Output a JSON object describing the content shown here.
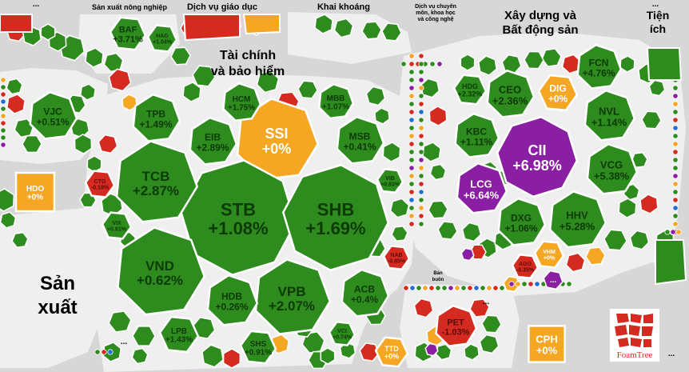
{
  "chart_data": {
    "type": "treemap",
    "title": "",
    "groups": [
      {
        "name": "Tài chính và bảo hiểm",
        "stocks": [
          {
            "code": "SSI",
            "change": "+0%",
            "status": "ref"
          },
          {
            "code": "STB",
            "change": "+1.08%",
            "status": "up"
          },
          {
            "code": "SHB",
            "change": "+1.69%",
            "status": "up"
          },
          {
            "code": "TCB",
            "change": "+2.87%",
            "status": "up"
          },
          {
            "code": "VND",
            "change": "+0.62%",
            "status": "up"
          },
          {
            "code": "VPB",
            "change": "+2.07%",
            "status": "up"
          },
          {
            "code": "HDB",
            "change": "+0.26%",
            "status": "up"
          },
          {
            "code": "ACB",
            "change": "+0.4%",
            "status": "up"
          },
          {
            "code": "EIB",
            "change": "+2.89%",
            "status": "up"
          },
          {
            "code": "MSB",
            "change": "+0.41%",
            "status": "up"
          },
          {
            "code": "TPB",
            "change": "+1.49%",
            "status": "up"
          },
          {
            "code": "HCM",
            "change": "+1.75%",
            "status": "up"
          },
          {
            "code": "MBB",
            "change": "+1.07%",
            "status": "up"
          },
          {
            "code": "LPB",
            "change": "+1.43%",
            "status": "up"
          },
          {
            "code": "SHS",
            "change": "+0.91%",
            "status": "up"
          },
          {
            "code": "VIX",
            "change": "+0.61%",
            "status": "up"
          },
          {
            "code": "CTG",
            "change": "-0.18%",
            "status": "down"
          },
          {
            "code": "NAB",
            "change": "-0.85%",
            "status": "down"
          },
          {
            "code": "VIB",
            "change": "+0.83%",
            "status": "up"
          },
          {
            "code": "VCI",
            "change": "+0.74%",
            "status": "up"
          },
          {
            "code": "TTD",
            "change": "+0%",
            "status": "ref"
          }
        ]
      },
      {
        "name": "Xây dựng và Bất động sản",
        "stocks": [
          {
            "code": "CII",
            "change": "+6.98%",
            "status": "ceiling"
          },
          {
            "code": "LCG",
            "change": "+6.64%",
            "status": "ceiling"
          },
          {
            "code": "DIG",
            "change": "+0%",
            "status": "ref"
          },
          {
            "code": "CEO",
            "change": "+2.36%",
            "status": "up"
          },
          {
            "code": "HDG",
            "change": "+2.32%",
            "status": "up"
          },
          {
            "code": "FCN",
            "change": "+4.76%",
            "status": "up"
          },
          {
            "code": "NVL",
            "change": "+1.14%",
            "status": "up"
          },
          {
            "code": "KBC",
            "change": "+1.11%",
            "status": "up"
          },
          {
            "code": "VCG",
            "change": "+5.38%",
            "status": "up"
          },
          {
            "code": "DXG",
            "change": "+1.06%",
            "status": "up"
          },
          {
            "code": "HHV",
            "change": "+5.28%",
            "status": "up"
          },
          {
            "code": "VHM",
            "change": "+0%",
            "status": "ref"
          },
          {
            "code": "AGG",
            "change": "-0.35%",
            "status": "down"
          }
        ]
      },
      {
        "name": "Sản xuất",
        "stocks": [
          {
            "code": "VJC",
            "change": "+0.51%",
            "status": "up"
          },
          {
            "code": "HDO",
            "change": "+0%",
            "status": "ref"
          }
        ]
      },
      {
        "name": "Sản xuất nông nghiệp",
        "stocks": [
          {
            "code": "BAF",
            "change": "+3.71%",
            "status": "up"
          },
          {
            "code": "HAG",
            "change": "+1.04%",
            "status": "up"
          }
        ]
      },
      {
        "name": "Dịch vụ giáo dục",
        "stocks": []
      },
      {
        "name": "Khai khoáng",
        "stocks": []
      },
      {
        "name": "Dịch vụ chuyên môn, khoa học và công nghệ",
        "stocks": []
      },
      {
        "name": "Tiện ích",
        "stocks": []
      },
      {
        "name": "Bán buôn",
        "stocks": [
          {
            "code": "PET",
            "change": "-1.03%",
            "status": "down"
          },
          {
            "code": "CPH",
            "change": "+0%",
            "status": "ref"
          }
        ]
      }
    ],
    "colors": {
      "up": "#2e8b1e",
      "down": "#d42a20",
      "ref": "#f5a623",
      "ceiling": "#8b1fa3",
      "empty": "#d7d7d7"
    },
    "brand": "FoamTree",
    "ellipsis": "..."
  }
}
